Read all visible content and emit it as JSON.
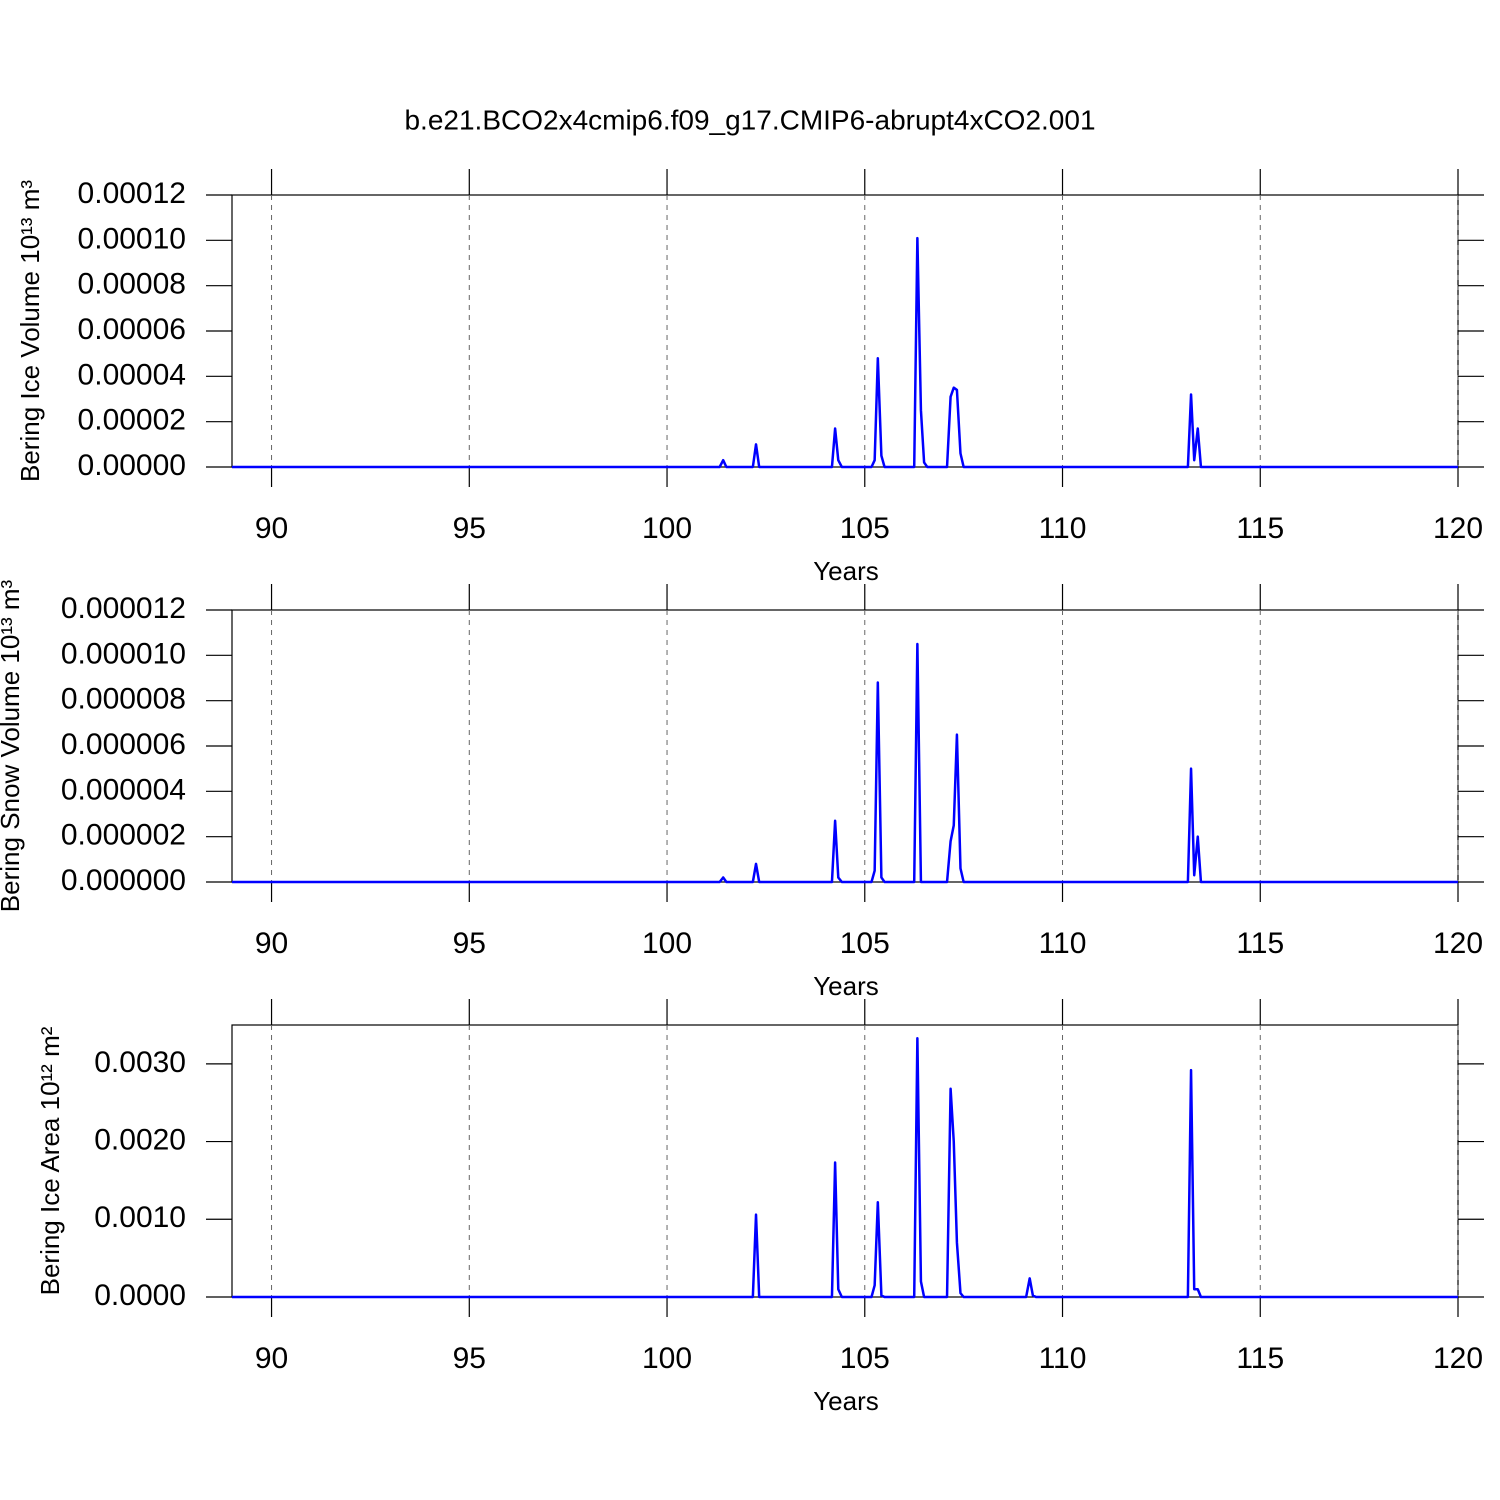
{
  "chart_data": [
    {
      "type": "line",
      "title": "b.e21.BCO2x4cmip6.f09_g17.CMIP6-abrupt4xCO2.001",
      "ylabel": "Bering Ice Volume 10¹³ m³",
      "xlabel": "Years",
      "color": "#0000ff",
      "grid": true,
      "xlim": [
        89,
        120
      ],
      "xticks": [
        90,
        95,
        100,
        105,
        110,
        115,
        120
      ],
      "ylim": [
        0,
        0.00012
      ],
      "yticks": [
        {
          "value": 0,
          "label": "0.00000"
        },
        2e-05,
        4e-05,
        6e-05,
        8e-05,
        {
          "value": 0.0001,
          "label": "0.00010"
        },
        0.00012
      ],
      "x": [
        89,
        101.33,
        101.42,
        101.5,
        102.17,
        102.25,
        102.33,
        104.17,
        104.25,
        104.33,
        104.42,
        105.17,
        105.25,
        105.33,
        105.42,
        105.5,
        106.25,
        106.33,
        106.42,
        106.5,
        106.58,
        107.08,
        107.17,
        107.25,
        107.33,
        107.42,
        107.5,
        113.17,
        113.25,
        113.33,
        113.42,
        113.5,
        120
      ],
      "values": [
        0,
        0,
        3e-06,
        0,
        0,
        1e-05,
        0,
        0,
        1.7e-05,
        3e-06,
        0,
        0,
        3e-06,
        4.8e-05,
        5e-06,
        0,
        0,
        0.000101,
        2.5e-05,
        2e-06,
        0,
        0,
        3.1e-05,
        3.5e-05,
        3.4e-05,
        6e-06,
        0,
        0,
        3.2e-05,
        3e-06,
        1.7e-05,
        0,
        0
      ]
    },
    {
      "type": "line",
      "ylabel": "Bering Snow Volume 10¹³ m³",
      "xlabel": "Years",
      "color": "#0000ff",
      "grid": true,
      "xlim": [
        89,
        120
      ],
      "xticks": [
        90,
        95,
        100,
        105,
        110,
        115,
        120
      ],
      "ylim": [
        0,
        1.2e-05
      ],
      "yticks": [
        {
          "value": 0,
          "label": "0.000000"
        },
        2e-06,
        4e-06,
        6e-06,
        8e-06,
        {
          "value": 1e-05,
          "label": "0.000010"
        },
        1.2e-05
      ],
      "x": [
        89,
        101.33,
        101.42,
        101.5,
        102.17,
        102.25,
        102.33,
        104.17,
        104.25,
        104.33,
        104.42,
        105.17,
        105.25,
        105.33,
        105.42,
        105.5,
        106.25,
        106.33,
        106.42,
        107.08,
        107.17,
        107.25,
        107.33,
        107.42,
        107.5,
        113.17,
        113.25,
        113.33,
        113.42,
        113.5,
        120
      ],
      "values": [
        0,
        0,
        2e-07,
        0,
        0,
        8e-07,
        0,
        0,
        2.7e-06,
        2e-07,
        0,
        0,
        5e-07,
        8.8e-06,
        2e-07,
        0,
        0,
        1.05e-05,
        0,
        0,
        1.8e-06,
        2.5e-06,
        6.5e-06,
        6e-07,
        0,
        0,
        5e-06,
        3e-07,
        2e-06,
        0,
        0
      ]
    },
    {
      "type": "line",
      "ylabel": "Bering Ice Area 10¹² m²",
      "xlabel": "Years",
      "color": "#0000ff",
      "grid": true,
      "xlim": [
        89,
        120
      ],
      "xticks": [
        90,
        95,
        100,
        105,
        110,
        115,
        120
      ],
      "ylim": [
        0,
        0.0035
      ],
      "yticks": [
        {
          "value": 0,
          "label": "0.0000"
        },
        {
          "value": 0.001,
          "label": "0.0010"
        },
        {
          "value": 0.002,
          "label": "0.0020"
        },
        {
          "value": 0.003,
          "label": "0.0030"
        }
      ],
      "x": [
        89,
        102.17,
        102.25,
        102.33,
        104.17,
        104.25,
        104.33,
        104.42,
        105.17,
        105.25,
        105.33,
        105.42,
        105.5,
        106.25,
        106.33,
        106.42,
        106.5,
        107.08,
        107.17,
        107.25,
        107.33,
        107.42,
        107.5,
        109.08,
        109.17,
        109.25,
        109.33,
        113.17,
        113.25,
        113.33,
        113.42,
        113.5,
        120
      ],
      "values": [
        0,
        0,
        0.00106,
        0,
        0,
        0.00173,
        0.0001,
        0,
        0,
        0.00015,
        0.00122,
        2e-05,
        0,
        0,
        0.00333,
        0.0002,
        0,
        0,
        0.00268,
        0.002,
        0.0007,
        5e-05,
        0,
        0,
        0.00024,
        2e-05,
        0,
        0,
        0.00292,
        0.0001,
        0.0001,
        0,
        0
      ]
    }
  ]
}
